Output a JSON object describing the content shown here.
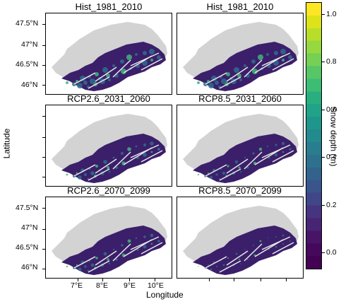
{
  "panels": [
    {
      "title": "Hist_1981_2010"
    },
    {
      "title": "Hist_1981_2010"
    },
    {
      "title": "RCP2.6_2031_2060"
    },
    {
      "title": "RCP8.5_2031_2060"
    },
    {
      "title": "RCP2.6_2070_2099"
    },
    {
      "title": "RCP8.5_2070_2099"
    }
  ],
  "axes": {
    "xlabel": "Longitude",
    "ylabel": "Latitude",
    "x_ticks": [
      "7°E",
      "8°E",
      "9°E",
      "10°E"
    ],
    "y_ticks": [
      "47.5°N",
      "47°N",
      "46.5°N",
      "46°N"
    ]
  },
  "colorbar": {
    "label": "Snow depth (m)",
    "ticks": [
      "1.0",
      "0.8",
      "0.6",
      "0.4",
      "0.2",
      "0.0"
    ],
    "range": [
      -0.07,
      1.05
    ],
    "colors": [
      "#440154",
      "#46085c",
      "#481467",
      "#482475",
      "#463480",
      "#3f4788",
      "#39558c",
      "#33638d",
      "#2d718e",
      "#287d8e",
      "#238a8d",
      "#1f968b",
      "#20a386",
      "#29af7f",
      "#3dbc74",
      "#56c667",
      "#75d054",
      "#95d840",
      "#b8de29",
      "#dde318",
      "#fde725"
    ]
  },
  "map_colors": {
    "lowland": "#d3d3d3",
    "alpine_low": "#3b1f6a",
    "alpine_mid": "#2f6c8e",
    "alpine_high": "#41b47a"
  }
}
